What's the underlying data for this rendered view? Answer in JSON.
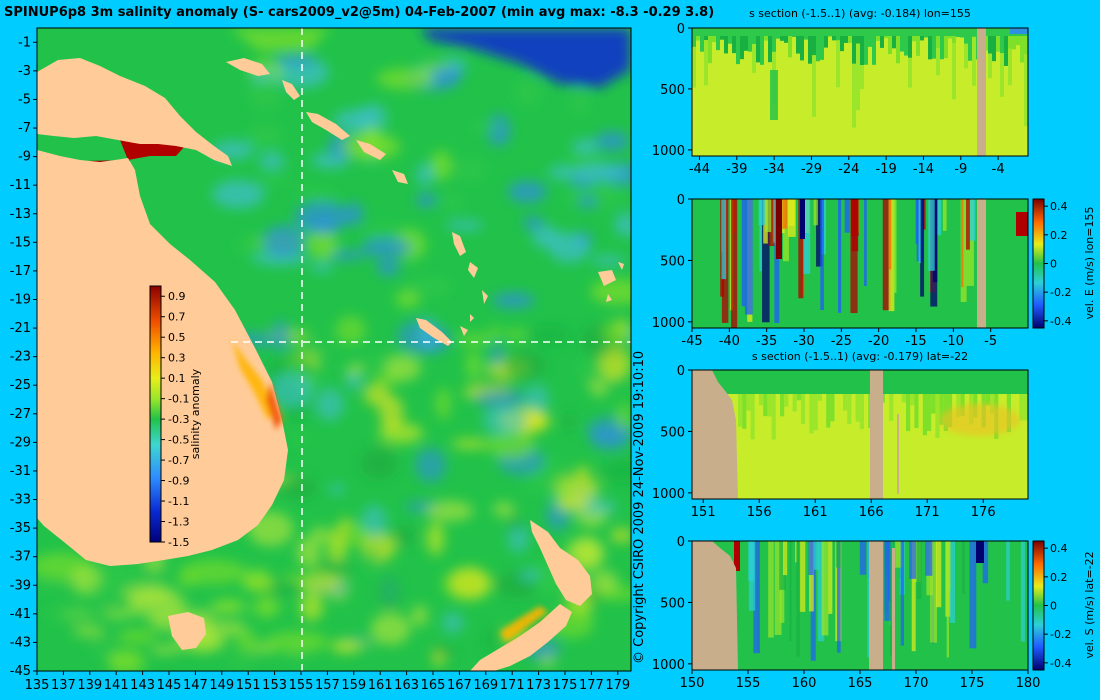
{
  "chart_data": [
    {
      "type": "heatmap",
      "title": "SPINUP6p8 3m salinity anomaly (S- cars2009_v2@5m) 04-Feb-2007 (min avg max: -8.3 -0.29 3.8)",
      "x_ticks": [
        "135",
        "137",
        "139",
        "141",
        "143",
        "145",
        "147",
        "149",
        "151",
        "153",
        "155",
        "157",
        "159",
        "161",
        "163",
        "165",
        "167",
        "169",
        "171",
        "173",
        "175",
        "177",
        "179"
      ],
      "y_ticks": [
        "-1",
        "-3",
        "-5",
        "-7",
        "-9",
        "-11",
        "-13",
        "-15",
        "-17",
        "-19",
        "-21",
        "-23",
        "-25",
        "-27",
        "-29",
        "-31",
        "-33",
        "-35",
        "-37",
        "-39",
        "-41",
        "-43",
        "-45"
      ],
      "xlim": [
        135,
        180
      ],
      "ylim": [
        -45,
        0
      ],
      "section_lines": {
        "lon": 155,
        "lat": -22
      },
      "colorbar": {
        "label": "salinity anomaly",
        "ticks": [
          "0.9",
          "0.7",
          "0.5",
          "0.3",
          "0.1",
          "-0.1",
          "-0.3",
          "-0.5",
          "-0.7",
          "-0.9",
          "-1.1",
          "-1.3",
          "-1.5"
        ],
        "range": [
          -1.5,
          1.0
        ]
      },
      "copyright": "© Copyright CSIRO 2009   24-Nov-2009 19:10:10"
    },
    {
      "type": "heatmap",
      "title": "s section (-1.5..1) (avg: -0.184) lon=155",
      "x_ticks": [
        "-44",
        "-39",
        "-34",
        "-29",
        "-24",
        "-19",
        "-14",
        "-9",
        "-4"
      ],
      "y_ticks": [
        "0",
        "500",
        "1000"
      ],
      "xlim": [
        -45,
        0
      ],
      "ylim": [
        0,
        1050
      ]
    },
    {
      "type": "heatmap",
      "title": "",
      "x_ticks": [
        "-45",
        "-40",
        "-35",
        "-30",
        "-25",
        "-20",
        "-15",
        "-10",
        "-5"
      ],
      "y_ticks": [
        "0",
        "500",
        "1000"
      ],
      "xlim": [
        -45,
        0
      ],
      "ylim": [
        0,
        1050
      ],
      "colorbar": {
        "label": "vel. E (m/s) lon=155",
        "ticks": [
          "0.4",
          "0.2",
          "0",
          "-0.2",
          "-0.4"
        ],
        "range": [
          -0.45,
          0.45
        ]
      }
    },
    {
      "type": "heatmap",
      "title": "s section (-1.5..1) (avg: -0.179) lat=-22",
      "x_ticks": [
        "151",
        "156",
        "161",
        "166",
        "171",
        "176"
      ],
      "y_ticks": [
        "0",
        "500",
        "1000"
      ],
      "xlim": [
        150,
        180
      ],
      "ylim": [
        0,
        1050
      ]
    },
    {
      "type": "heatmap",
      "title": "",
      "x_ticks": [
        "150",
        "155",
        "160",
        "165",
        "170",
        "175",
        "180"
      ],
      "y_ticks": [
        "0",
        "500",
        "1000"
      ],
      "xlim": [
        150,
        180
      ],
      "ylim": [
        0,
        1050
      ],
      "colorbar": {
        "label": "vel. S (m/s) lat=-22",
        "ticks": [
          "0.4",
          "0.2",
          "0",
          "-0.2",
          "-0.4"
        ],
        "range": [
          -0.45,
          0.45
        ]
      }
    }
  ],
  "colors": {
    "background": "#00ccff",
    "land": "#ffcc99",
    "section_land": "#c9ae8c",
    "ocean_base": "#22c24a"
  }
}
